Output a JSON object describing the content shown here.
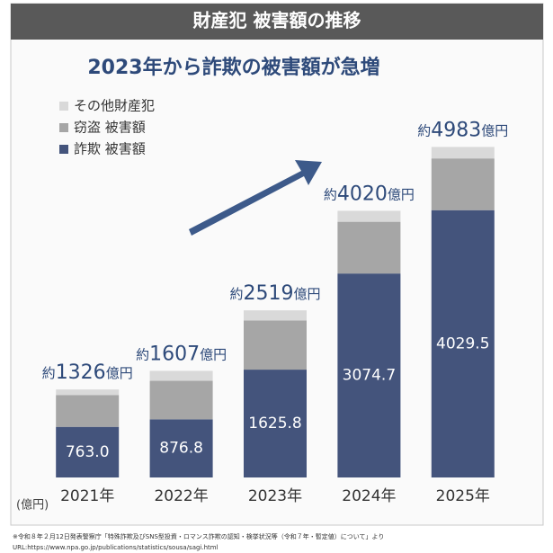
{
  "chart_data": {
    "type": "stacked-bar",
    "header": "財産犯 被害額の推移",
    "title": "2023年から詐欺の被害額が急増",
    "categories": [
      "2021年",
      "2022年",
      "2023年",
      "2024年",
      "2025年"
    ],
    "series": [
      {
        "name": "詐欺 被害額",
        "color": "#44547c",
        "values": [
          763.0,
          876.8,
          1625.8,
          3074.7,
          4029.5
        ],
        "value_labels": [
          "763.0",
          "876.8",
          "1625.8",
          "3074.7",
          "4029.5"
        ]
      },
      {
        "name": "窃盗 被害額",
        "color": "#a6a6a6",
        "values": [
          480,
          580,
          740,
          780,
          780
        ]
      },
      {
        "name": "その他財産犯",
        "color": "#d9d9d9",
        "values": [
          83,
          150,
          153,
          165,
          173.5
        ]
      }
    ],
    "totals": [
      1326,
      1607,
      2519,
      4020,
      4983
    ],
    "total_prefix": "約",
    "total_suffix": "億円",
    "unit_label": "(億円)",
    "ylim": [
      0,
      5300
    ],
    "footnote": [
      "※令和８年２月12日発表警察庁「特殊詐欺及びSNS型投資・ロマンス詐欺の認知・検挙状況等（令和７年・暫定値）について」より",
      "URL:https://www.npa.go.jp/publications/statistics/sousa/sagi.html"
    ]
  }
}
